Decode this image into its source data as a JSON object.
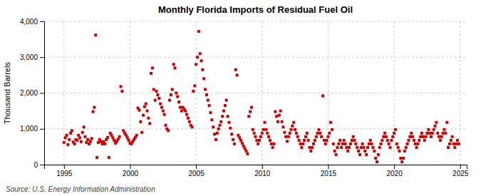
{
  "chart_data": {
    "type": "scatter",
    "title": "Monthly Florida Imports of Residual Fuel Oil",
    "ylabel": "Thousand Barrels",
    "annotations": [
      "Source: U.S. Energy Information Administration"
    ],
    "color": "#cc0000",
    "marker": "square",
    "grid": true,
    "xlim": [
      1993.5,
      2025.5
    ],
    "ylim": [
      0,
      4000
    ],
    "xticks": [
      1995,
      2000,
      2005,
      2010,
      2015,
      2020,
      2025
    ],
    "yticks": [
      0,
      {
        "value": 1000,
        "label": "1,000"
      },
      {
        "value": 2000,
        "label": "2,000"
      },
      {
        "value": 3000,
        "label": "3,000"
      },
      {
        "value": 4000,
        "label": "4,000"
      }
    ],
    "x": [
      1995.0,
      1995.1,
      1995.2,
      1995.3,
      1995.4,
      1995.5,
      1995.6,
      1995.7,
      1995.8,
      1995.9,
      1996.0,
      1996.1,
      1996.2,
      1996.3,
      1996.4,
      1996.5,
      1996.6,
      1996.7,
      1996.8,
      1996.9,
      1997.0,
      1997.1,
      1997.2,
      1997.3,
      1997.4,
      1997.5,
      1997.6,
      1997.7,
      1997.8,
      1997.9,
      1998.0,
      1998.1,
      1998.2,
      1998.3,
      1998.4,
      1998.5,
      1998.6,
      1998.7,
      1998.8,
      1998.9,
      1999.0,
      1999.1,
      1999.2,
      1999.3,
      1999.4,
      1999.5,
      1999.6,
      1999.7,
      1999.8,
      1999.9,
      2000.0,
      2000.1,
      2000.2,
      2000.3,
      2000.4,
      2000.5,
      2000.6,
      2000.7,
      2000.8,
      2000.9,
      2001.0,
      2001.1,
      2001.2,
      2001.3,
      2001.4,
      2001.5,
      2001.6,
      2001.7,
      2001.8,
      2001.9,
      2002.0,
      2002.1,
      2002.2,
      2002.3,
      2002.4,
      2002.5,
      2002.6,
      2002.7,
      2002.8,
      2002.9,
      2003.0,
      2003.1,
      2003.2,
      2003.3,
      2003.4,
      2003.5,
      2003.6,
      2003.7,
      2003.8,
      2003.9,
      2004.0,
      2004.1,
      2004.2,
      2004.3,
      2004.4,
      2004.5,
      2004.6,
      2004.7,
      2004.8,
      2004.9,
      2005.0,
      2005.1,
      2005.2,
      2005.3,
      2005.4,
      2005.5,
      2005.6,
      2005.7,
      2005.8,
      2005.9,
      2006.0,
      2006.1,
      2006.2,
      2006.3,
      2006.4,
      2006.5,
      2006.6,
      2006.7,
      2006.8,
      2006.9,
      2007.0,
      2007.1,
      2007.2,
      2007.3,
      2007.4,
      2007.5,
      2007.6,
      2007.7,
      2007.8,
      2007.9,
      2008.0,
      2008.1,
      2008.2,
      2008.3,
      2008.4,
      2008.5,
      2008.6,
      2008.7,
      2008.8,
      2008.9,
      2009.0,
      2009.1,
      2009.2,
      2009.3,
      2009.4,
      2009.5,
      2009.6,
      2009.7,
      2009.8,
      2009.9,
      2010.0,
      2010.1,
      2010.2,
      2010.3,
      2010.4,
      2010.5,
      2010.6,
      2010.7,
      2010.8,
      2010.9,
      2011.0,
      2011.1,
      2011.2,
      2011.3,
      2011.4,
      2011.5,
      2011.6,
      2011.7,
      2011.8,
      2011.9,
      2012.0,
      2012.1,
      2012.2,
      2012.3,
      2012.4,
      2012.5,
      2012.6,
      2012.7,
      2012.8,
      2012.9,
      2013.0,
      2013.1,
      2013.2,
      2013.3,
      2013.4,
      2013.5,
      2013.6,
      2013.7,
      2013.8,
      2013.9,
      2014.0,
      2014.1,
      2014.2,
      2014.3,
      2014.4,
      2014.5,
      2014.6,
      2014.7,
      2014.8,
      2014.9,
      2015.0,
      2015.1,
      2015.2,
      2015.3,
      2015.4,
      2015.5,
      2015.6,
      2015.7,
      2015.8,
      2015.9,
      2016.0,
      2016.1,
      2016.2,
      2016.3,
      2016.4,
      2016.5,
      2016.6,
      2016.7,
      2016.8,
      2016.9,
      2017.0,
      2017.1,
      2017.2,
      2017.3,
      2017.4,
      2017.5,
      2017.6,
      2017.7,
      2017.8,
      2017.9,
      2018.0,
      2018.1,
      2018.2,
      2018.3,
      2018.4,
      2018.5,
      2018.6,
      2018.7,
      2018.8,
      2018.9,
      2019.0,
      2019.1,
      2019.2,
      2019.3,
      2019.4,
      2019.5,
      2019.6,
      2019.7,
      2019.8,
      2019.9,
      2020.0,
      2020.1,
      2020.2,
      2020.3,
      2020.4,
      2020.5,
      2020.6,
      2020.7,
      2020.8,
      2020.9,
      2021.0,
      2021.1,
      2021.2,
      2021.3,
      2021.4,
      2021.5,
      2021.6,
      2021.7,
      2021.8,
      2021.9,
      2022.0,
      2022.1,
      2022.2,
      2022.3,
      2022.4,
      2022.5,
      2022.6,
      2022.7,
      2022.8,
      2022.9,
      2023.0,
      2023.1,
      2023.2,
      2023.3,
      2023.4,
      2023.5,
      2023.6,
      2023.7,
      2023.8,
      2023.9,
      2024.0,
      2024.1,
      2024.2,
      2024.3,
      2024.4,
      2024.5,
      2024.6,
      2024.7,
      2024.8,
      2024.9
    ],
    "values": [
      620,
      750,
      820,
      560,
      700,
      880,
      950,
      630,
      580,
      700,
      680,
      820,
      750,
      640,
      900,
      1050,
      780,
      620,
      700,
      580,
      650,
      730,
      1480,
      1600,
      3620,
      200,
      620,
      700,
      650,
      580,
      640,
      580,
      700,
      760,
      200,
      880,
      820,
      750,
      680,
      600,
      650,
      710,
      780,
      2180,
      2050,
      950,
      880,
      820,
      750,
      680,
      600,
      580,
      640,
      700,
      760,
      820,
      1580,
      1520,
      1200,
      900,
      1380,
      1620,
      1700,
      1500,
      1300,
      1150,
      2550,
      2700,
      2100,
      1800,
      2050,
      1950,
      1850,
      1700,
      1600,
      1500,
      1400,
      1100,
      1000,
      950,
      1800,
      1950,
      2100,
      2800,
      2700,
      2000,
      1900,
      1750,
      1600,
      1500,
      1600,
      1550,
      1500,
      1400,
      1300,
      1200,
      1100,
      1050,
      2050,
      2200,
      2800,
      3000,
      3720,
      3100,
      2900,
      2650,
      2400,
      2100,
      1950,
      1800,
      1650,
      1450,
      1250,
      1050,
      850,
      700,
      880,
      1000,
      1100,
      1200,
      1350,
      1500,
      1650,
      1800,
      1350,
      1180,
      1020,
      850,
      700,
      580,
      2650,
      2500,
      820,
      750,
      680,
      600,
      520,
      450,
      380,
      300,
      1350,
      1480,
      1600,
      980,
      880,
      780,
      680,
      580,
      680,
      780,
      880,
      980,
      1180,
      980,
      880,
      780,
      680,
      580,
      480,
      580,
      1480,
      1350,
      1200,
      1380,
      1500,
      1200,
      1050,
      900,
      780,
      650,
      780,
      880,
      980,
      1080,
      1180,
      980,
      880,
      780,
      680,
      580,
      480,
      580,
      680,
      780,
      880,
      680,
      480,
      380,
      480,
      580,
      680,
      780,
      880,
      980,
      880,
      780,
      1920,
      680,
      580,
      680,
      780,
      880,
      1180,
      980,
      580,
      380,
      280,
      480,
      580,
      680,
      480,
      580,
      680,
      580,
      480,
      380,
      480,
      580,
      680,
      780,
      680,
      580,
      480,
      380,
      280,
      480,
      580,
      480,
      380,
      280,
      480,
      580,
      680,
      580,
      480,
      380,
      180,
      80,
      280,
      480,
      580,
      680,
      780,
      880,
      780,
      680,
      580,
      480,
      680,
      780,
      880,
      980,
      580,
      480,
      380,
      180,
      80,
      180,
      380,
      480,
      580,
      680,
      780,
      880,
      780,
      680,
      580,
      480,
      580,
      680,
      780,
      880,
      780,
      680,
      780,
      880,
      980,
      880,
      780,
      880,
      980,
      1080,
      1180,
      880,
      780,
      680,
      780,
      880,
      980,
      880,
      1180,
      480,
      580,
      680,
      780,
      580,
      480,
      580,
      680,
      580
    ]
  }
}
